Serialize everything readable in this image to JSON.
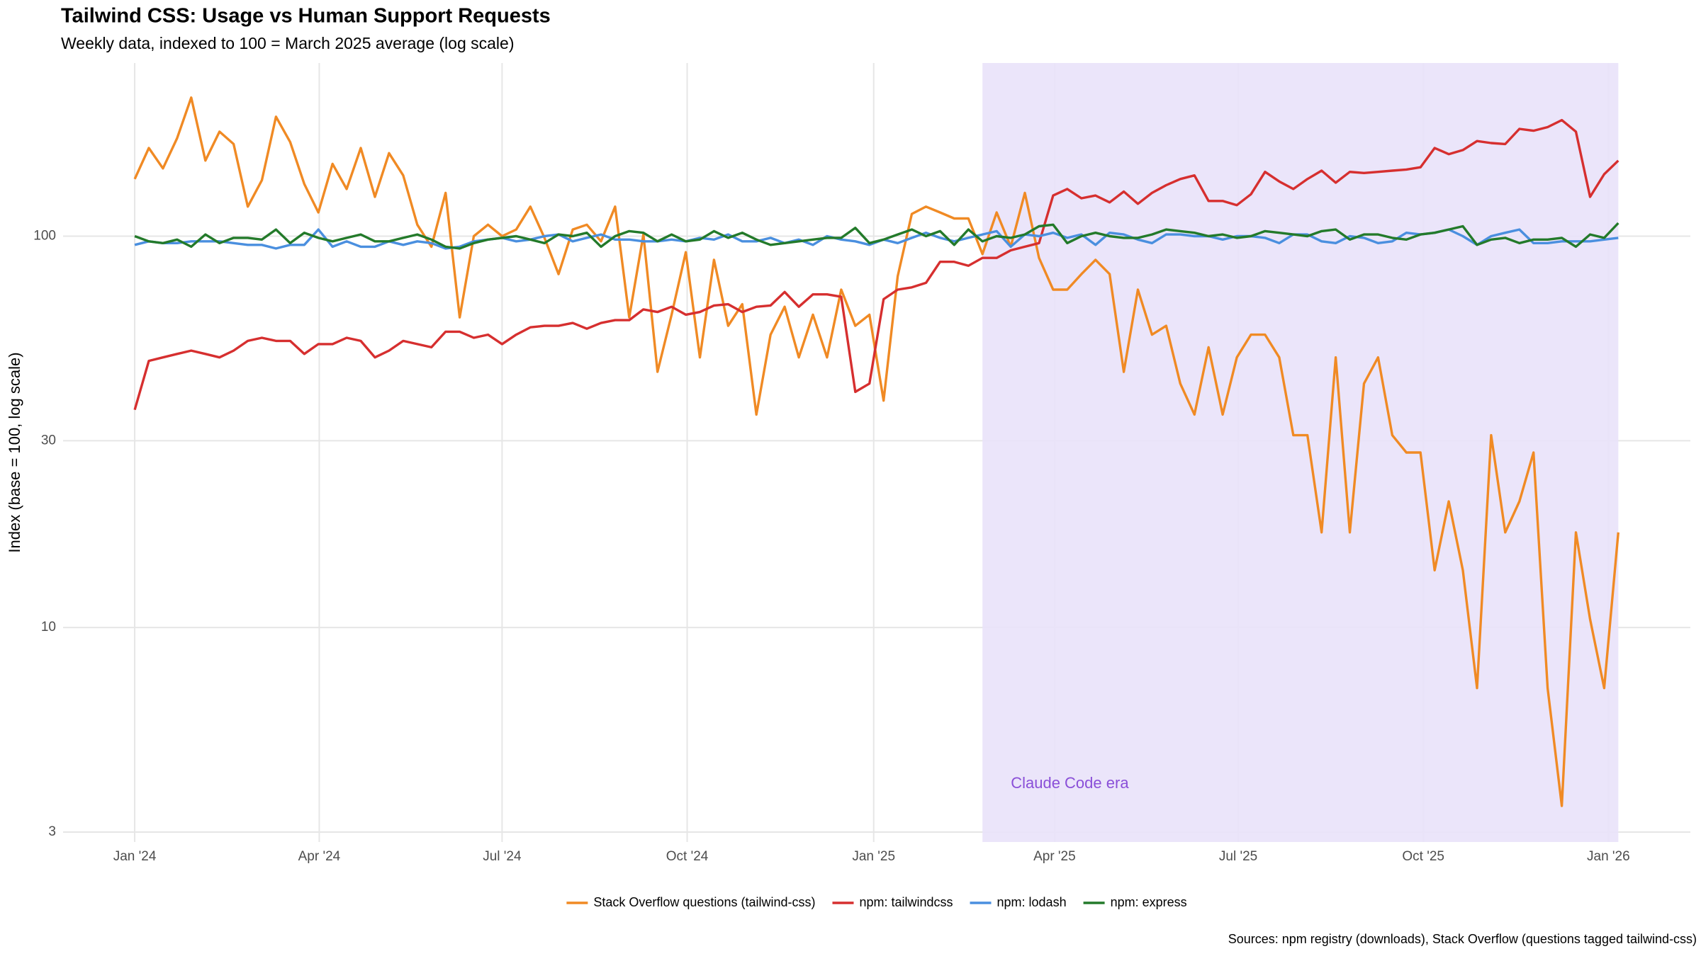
{
  "chart_data": {
    "type": "line",
    "title": "Tailwind CSS: Usage vs Human Support Requests",
    "subtitle": "Weekly data, indexed to 100 = March 2025 average (log scale)",
    "y_label": "Index (base = 100, log scale)",
    "source": "Sources: npm registry (downloads), Stack Overflow (questions tagged tailwind-css)",
    "log_y": true,
    "grid": true,
    "legend_position": "bottom",
    "x": [
      0,
      1,
      2,
      3,
      4,
      5,
      6,
      7,
      8,
      9,
      10,
      11,
      12,
      13,
      14,
      15,
      16,
      17,
      18,
      19,
      20,
      21,
      22,
      23,
      24,
      25,
      26,
      27,
      28,
      29,
      30,
      31,
      32,
      33,
      34,
      35,
      36,
      37,
      38,
      39,
      40,
      41,
      42,
      43,
      44,
      45,
      46,
      47,
      48,
      49,
      50,
      51,
      52,
      53,
      54,
      55,
      56,
      57,
      58,
      59,
      60,
      61,
      62,
      63,
      64,
      65,
      66,
      67,
      68,
      69,
      70,
      71,
      72,
      73,
      74,
      75,
      76,
      77,
      78,
      79,
      80,
      81,
      82,
      83,
      84,
      85,
      86,
      87,
      88,
      89,
      90,
      91,
      92,
      93,
      94,
      95,
      96,
      97,
      98,
      99,
      100,
      101,
      102,
      103,
      104,
      105
    ],
    "xlim": [
      -5.07,
      110.1
    ],
    "xticks": [
      {
        "value": 0,
        "label": "Jan '24"
      },
      {
        "value": 13.06,
        "label": "Apr '24"
      },
      {
        "value": 26.0,
        "label": "Jul '24"
      },
      {
        "value": 39.1,
        "label": "Oct '24"
      },
      {
        "value": 52.3,
        "label": "Jan '25"
      },
      {
        "value": 65.1,
        "label": "Apr '25"
      },
      {
        "value": 78.1,
        "label": "Jul '25"
      },
      {
        "value": 91.2,
        "label": "Oct '25"
      },
      {
        "value": 104.3,
        "label": "Jan '26"
      }
    ],
    "ylim": [
      2.83,
      277
    ],
    "yticks": [
      3,
      10,
      30,
      100
    ],
    "highlight": {
      "xmin": 60,
      "xmax": 105,
      "label": "Claude Code era",
      "color": "#e9e2fa",
      "label_color": "#8a4fd8"
    },
    "series": [
      {
        "name": "Stack Overflow questions (tailwind-css)",
        "color": "#f08a24",
        "values": [
          140,
          168,
          149,
          178,
          226,
          156,
          185,
          172,
          119,
          139,
          202,
          174,
          136,
          115,
          153,
          132,
          168,
          126,
          163,
          143,
          107,
          94,
          129,
          62,
          100,
          107,
          100,
          104,
          119,
          99,
          80,
          104,
          107,
          97,
          119,
          62,
          101,
          45,
          63,
          91,
          49,
          87,
          59,
          67,
          35,
          56,
          66,
          49,
          63,
          49,
          73,
          59,
          63,
          38,
          79,
          114,
          119,
          115,
          111,
          111,
          90,
          115,
          94,
          129,
          88,
          73,
          73,
          80,
          87,
          80,
          45,
          73,
          56,
          59,
          42,
          35,
          52,
          35,
          49,
          56,
          56,
          49,
          31,
          31,
          17.5,
          49,
          17.5,
          42,
          49,
          31,
          28,
          28,
          14,
          21,
          14,
          7,
          31,
          17.5,
          21,
          28,
          7,
          3.5,
          17.5,
          10.5,
          7,
          17.5
        ]
      },
      {
        "name": "npm: tailwindcss",
        "color": "#d62f2f",
        "values": [
          36,
          48,
          49,
          50,
          51,
          50,
          49,
          51,
          54,
          55,
          54,
          54,
          50,
          53,
          53,
          55,
          54,
          49,
          51,
          54,
          53,
          52,
          57,
          57,
          55,
          56,
          53,
          56,
          58.5,
          59,
          59,
          60,
          58,
          60,
          61,
          61,
          65,
          64,
          66,
          63,
          64,
          66.5,
          67,
          64,
          66,
          66.5,
          72,
          66,
          71,
          71,
          70,
          40,
          42,
          69,
          73,
          74,
          76,
          86,
          86,
          84,
          88,
          88,
          92,
          94,
          96,
          127,
          132,
          125,
          127,
          122,
          130,
          121,
          129,
          135,
          140,
          143,
          123,
          123,
          120,
          128,
          146,
          138,
          132,
          140,
          147,
          137,
          146,
          145,
          146,
          147,
          148,
          150,
          168,
          162,
          166,
          175,
          173,
          172,
          188,
          186,
          190,
          198,
          185,
          126,
          144,
          156
        ]
      },
      {
        "name": "npm: lodash",
        "color": "#4a8fdf",
        "values": [
          95,
          97,
          96,
          96,
          97,
          97,
          97,
          96,
          95,
          95,
          93,
          95,
          95,
          104,
          94,
          97,
          94,
          94,
          97,
          95,
          97,
          96,
          93,
          94,
          97,
          98,
          99,
          97,
          98,
          100,
          101,
          97,
          99,
          101,
          98,
          98,
          97,
          97,
          98,
          97,
          99,
          98,
          101,
          97,
          97,
          99,
          96,
          98,
          95,
          100,
          98,
          97,
          95,
          98,
          96,
          99,
          102,
          99,
          97,
          99,
          101,
          103,
          94,
          101,
          100,
          102,
          99,
          101,
          95,
          102,
          101,
          98,
          96,
          101,
          101,
          100,
          100,
          98,
          100,
          100,
          99,
          96,
          101,
          101,
          97,
          96,
          100,
          99,
          96,
          97,
          102,
          101,
          102,
          104,
          100,
          95,
          100,
          102,
          104,
          96,
          96,
          97,
          97,
          97,
          98,
          99
        ]
      },
      {
        "name": "npm: express",
        "color": "#237a2a",
        "values": [
          100,
          97,
          96,
          98,
          94,
          101,
          96,
          99,
          99,
          98,
          104,
          96,
          102,
          99,
          97,
          99,
          101,
          97,
          97,
          99,
          101,
          98,
          94,
          93,
          96,
          98,
          99,
          100,
          98,
          96,
          101,
          100,
          102,
          94,
          100,
          103,
          102,
          97,
          101,
          97,
          98,
          103,
          99,
          102,
          98,
          95,
          96,
          97,
          98,
          99,
          99,
          105,
          96,
          98,
          101,
          104,
          100,
          103,
          95,
          104,
          97,
          100,
          99,
          101,
          106,
          107,
          96,
          100,
          102,
          100,
          99,
          99,
          101,
          104,
          103,
          102,
          100,
          101,
          99,
          100,
          103,
          102,
          101,
          100,
          103,
          104,
          98,
          101,
          101,
          99,
          98,
          101,
          102,
          104,
          106,
          95,
          98,
          99,
          96,
          98,
          98,
          99,
          94,
          101,
          99,
          108
        ]
      }
    ]
  }
}
